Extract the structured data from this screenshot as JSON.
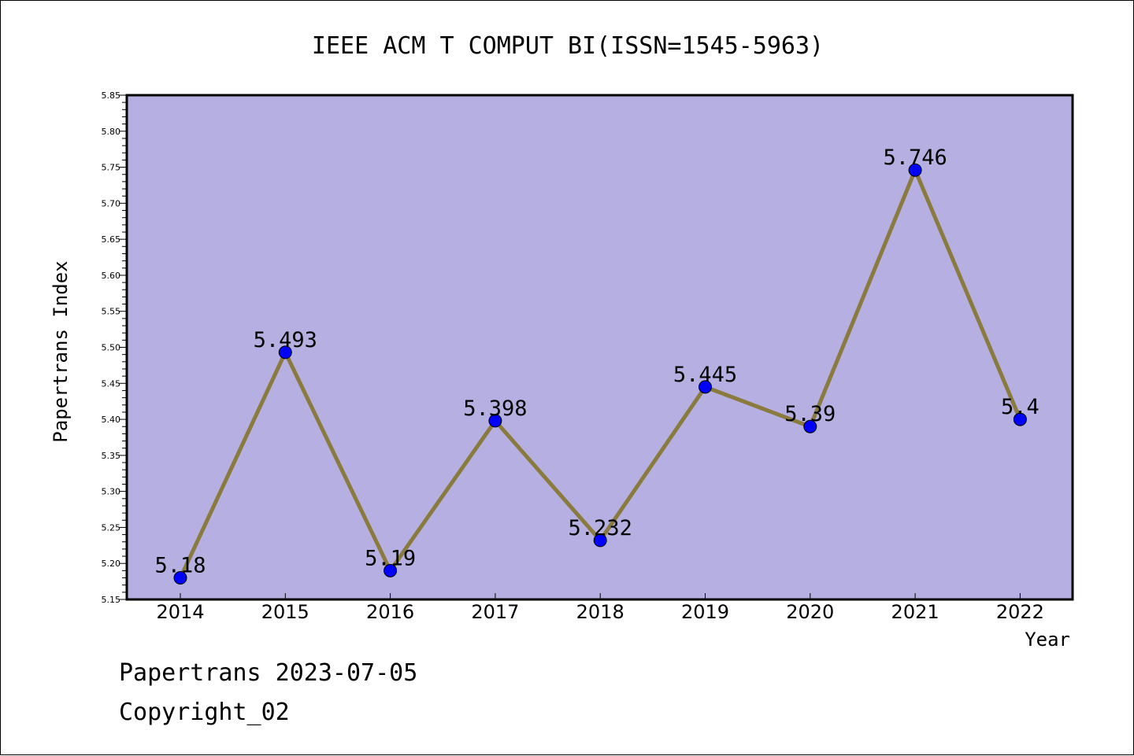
{
  "chart_data": {
    "type": "line",
    "title": "IEEE ACM T COMPUT BI(ISSN=1545-5963)",
    "xlabel": "Year",
    "ylabel": "Papertrans Index",
    "categories": [
      "2014",
      "2015",
      "2016",
      "2017",
      "2018",
      "2019",
      "2020",
      "2021",
      "2022"
    ],
    "series": [
      {
        "values": [
          5.18,
          5.493,
          5.19,
          5.398,
          5.232,
          5.445,
          5.39,
          5.746,
          5.4
        ],
        "labels": [
          "5.18",
          "5.493",
          "5.19",
          "5.398",
          "5.232",
          "5.445",
          "5.39",
          "5.746",
          "5.4"
        ]
      }
    ],
    "ylim": [
      5.15,
      5.85
    ],
    "yticks": [
      "5.15",
      "5.20",
      "5.25",
      "5.30",
      "5.35",
      "5.40",
      "5.45",
      "5.50",
      "5.55",
      "5.60",
      "5.65",
      "5.70",
      "5.75",
      "5.80",
      "5.85"
    ],
    "grid": false,
    "colors": {
      "plot_background": "#b5afe2",
      "line": "#8b7a3d",
      "marker": "#0000ff"
    }
  },
  "footer": {
    "date_line": "Papertrans 2023-07-05",
    "copyright": "Copyright_02"
  }
}
